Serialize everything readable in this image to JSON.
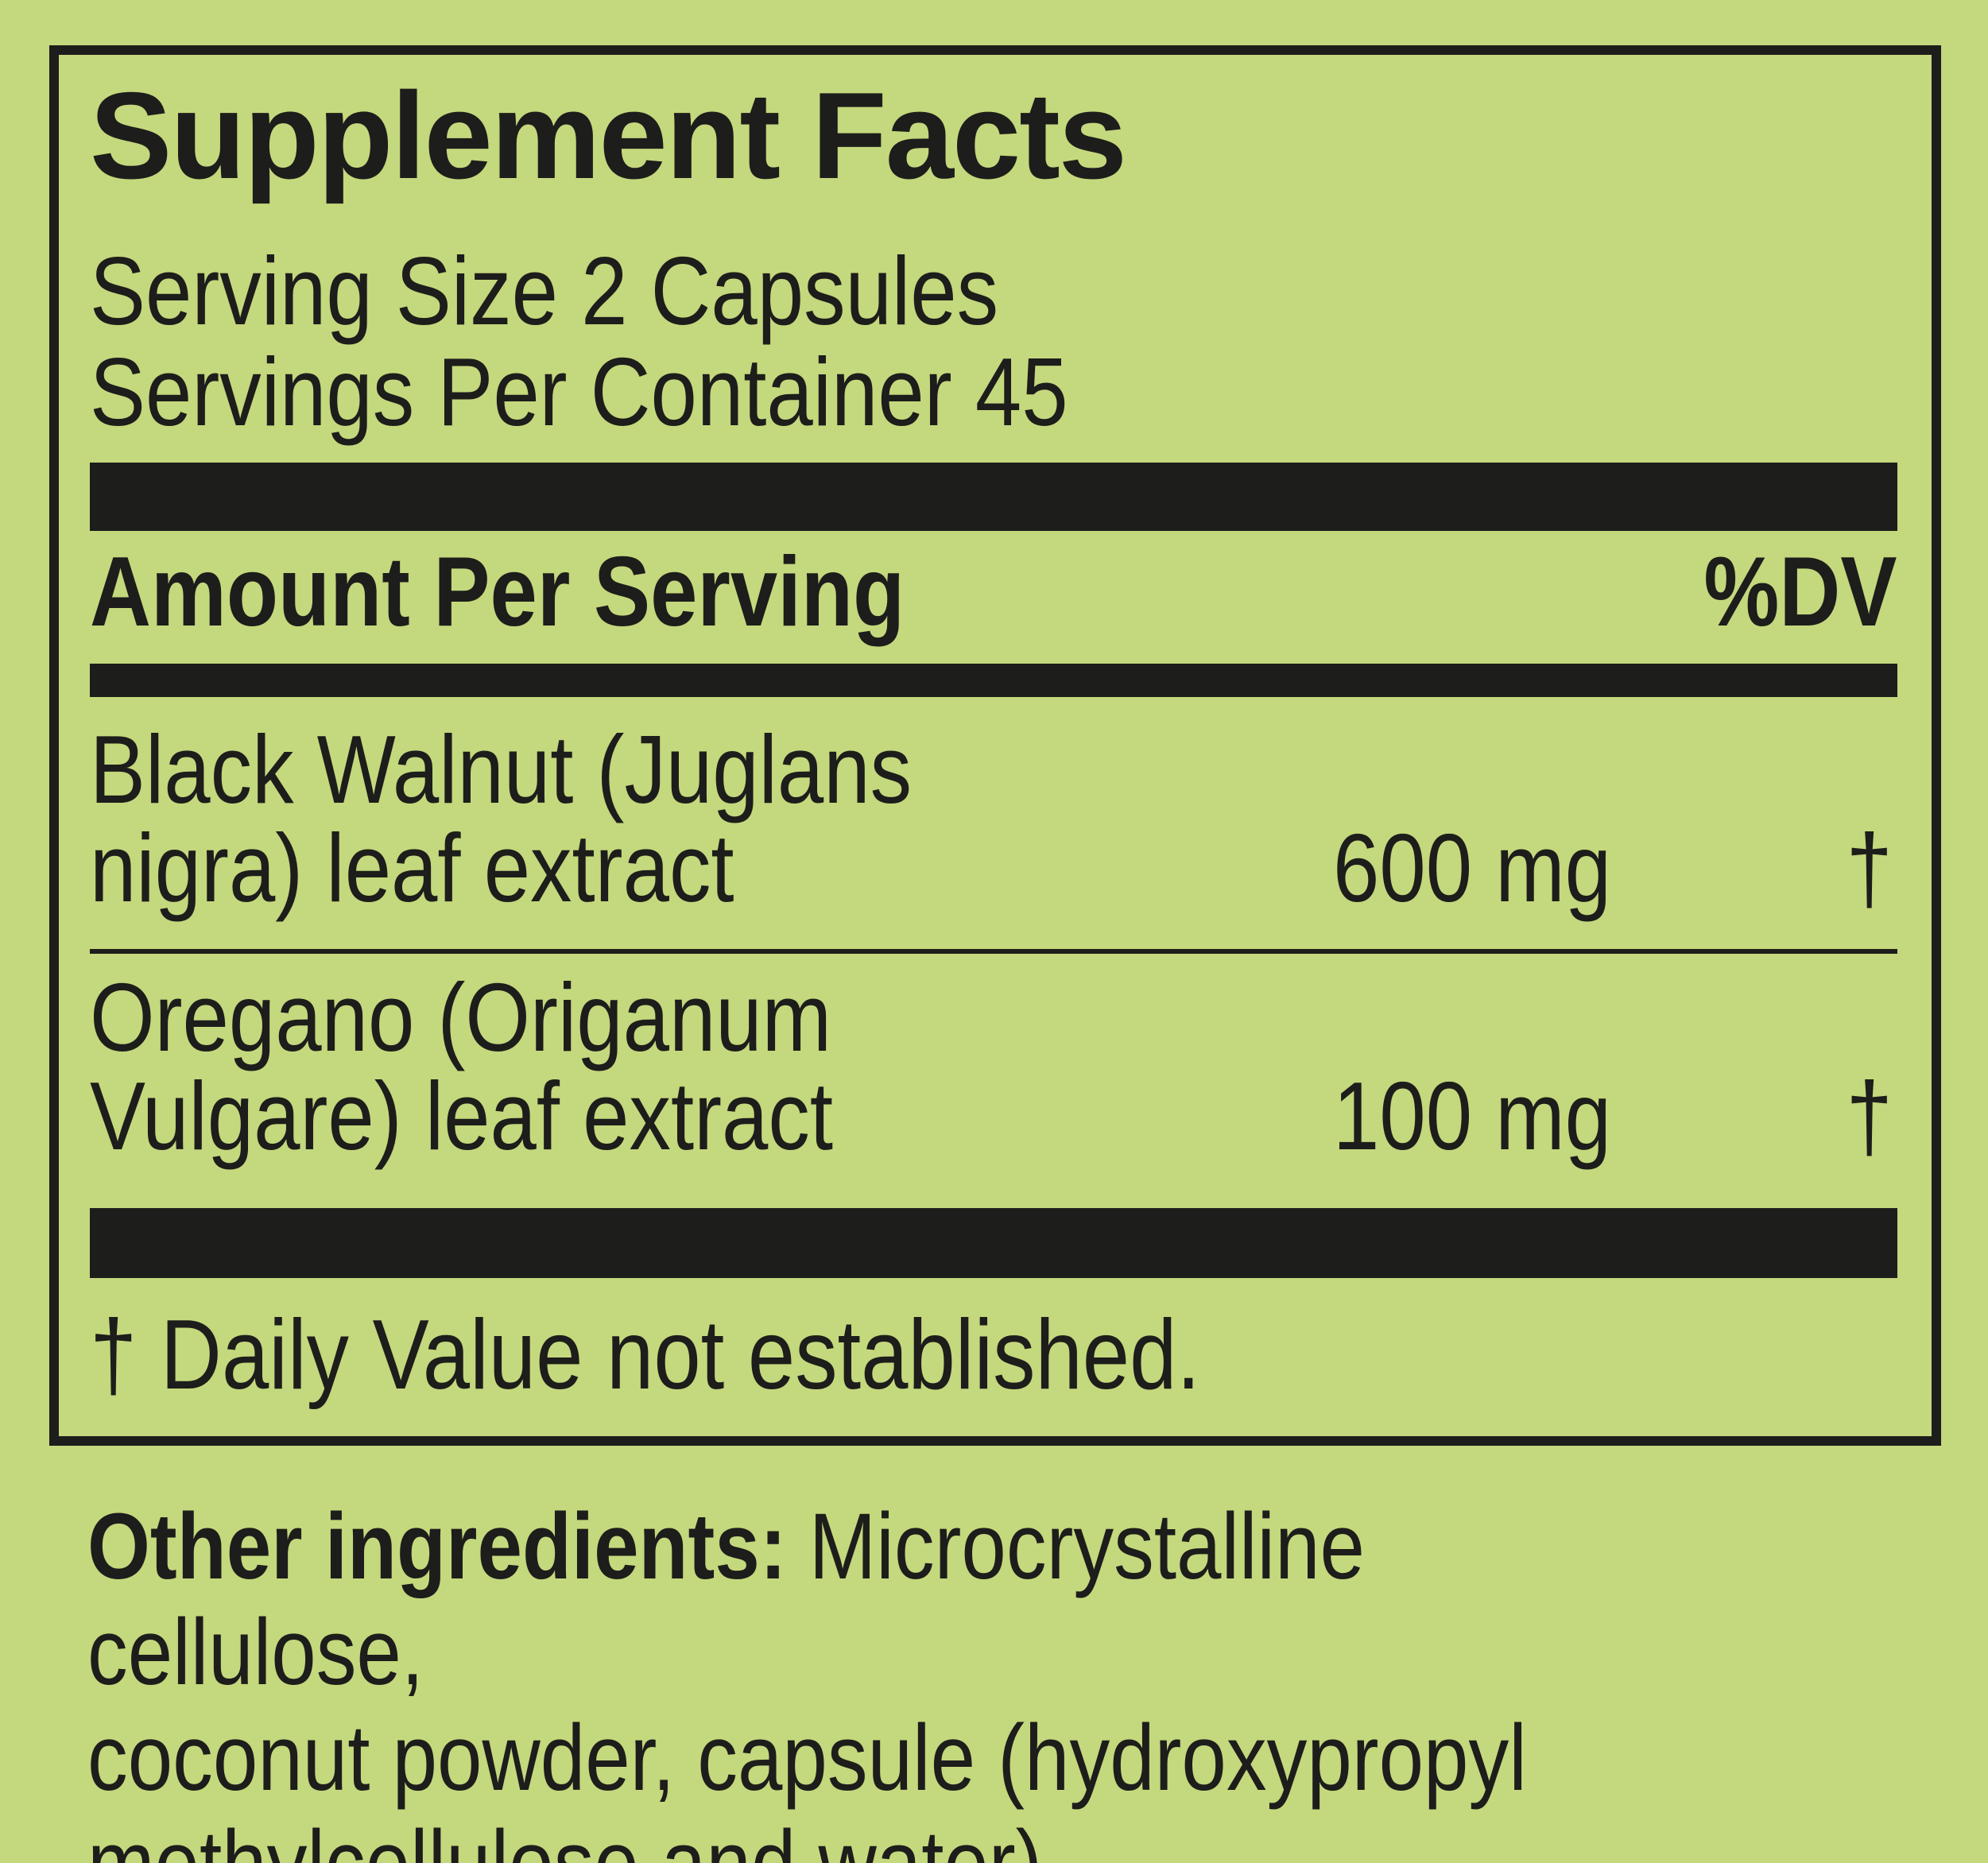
{
  "colors": {
    "background": "#c4d87d",
    "ink": "#1d1d1b"
  },
  "panel": {
    "title": "Supplement Facts",
    "serving_size": "Serving Size 2 Capsules",
    "servings_per_container": "Servings Per Container 45",
    "amount_header": "Amount Per Serving",
    "dv_header": "%DV",
    "rows": [
      {
        "name": "Black Walnut (Juglans\nnigra) leaf extract",
        "amount": "600 mg",
        "dv": "†"
      },
      {
        "name": "Oregano (Origanum\nVulgare) leaf extract",
        "amount": "100 mg",
        "dv": "†"
      }
    ],
    "footnote": "† Daily Value not established."
  },
  "other_ingredients": {
    "label": "Other ingredients:",
    "text": " Microcrystalline cellulose,\ncoconut powder, capsule (hydroxypropyl\nmethylcellulose and water)."
  }
}
